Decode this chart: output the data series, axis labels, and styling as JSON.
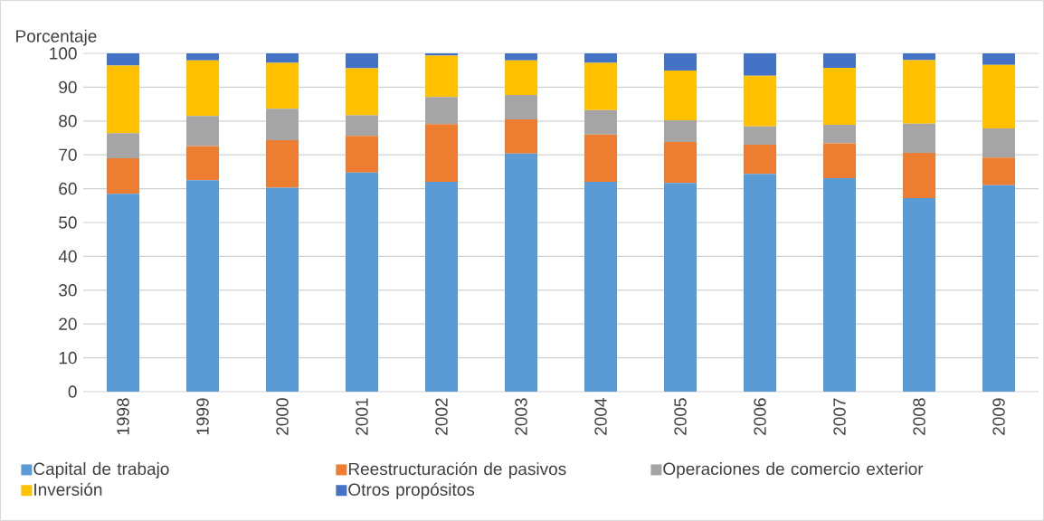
{
  "chart_data": {
    "type": "bar",
    "stacked": true,
    "ylabel": "Porcentaje",
    "categories": [
      "1998",
      "1999",
      "2000",
      "2001",
      "2002",
      "2003",
      "2004",
      "2005",
      "2006",
      "2007",
      "2008",
      "2009"
    ],
    "series": [
      {
        "name": "Capital de trabajo",
        "color": "#5b9bd5",
        "values": [
          58.5,
          62.5,
          60.3,
          64.8,
          62.0,
          70.4,
          62.0,
          61.7,
          64.4,
          63.1,
          57.2,
          61.0
        ]
      },
      {
        "name": "Reestructuración de pasivos",
        "color": "#ed7d31",
        "values": [
          10.5,
          10.1,
          14.0,
          10.8,
          17.1,
          10.1,
          14.0,
          12.1,
          8.6,
          10.3,
          13.4,
          8.2
        ]
      },
      {
        "name": "Operaciones de comercio exterior",
        "color": "#a5a5a5",
        "values": [
          7.4,
          8.9,
          9.3,
          6.1,
          8.0,
          7.2,
          7.2,
          6.4,
          5.4,
          5.5,
          8.6,
          8.6
        ]
      },
      {
        "name": "Inversión",
        "color": "#ffc000",
        "values": [
          20.0,
          16.4,
          13.6,
          13.9,
          12.2,
          10.2,
          14.0,
          14.7,
          15.0,
          16.8,
          18.8,
          18.8
        ]
      },
      {
        "name": "Otros propósitos",
        "color": "#4472c4",
        "values": [
          3.6,
          2.1,
          2.8,
          4.4,
          0.7,
          2.1,
          2.8,
          5.1,
          6.6,
          4.3,
          2.0,
          3.4
        ]
      }
    ],
    "ylim": [
      0,
      100
    ],
    "yticks": [
      0,
      10,
      20,
      30,
      40,
      50,
      60,
      70,
      80,
      90,
      100
    ],
    "grid": "y",
    "legend": "bottom"
  }
}
